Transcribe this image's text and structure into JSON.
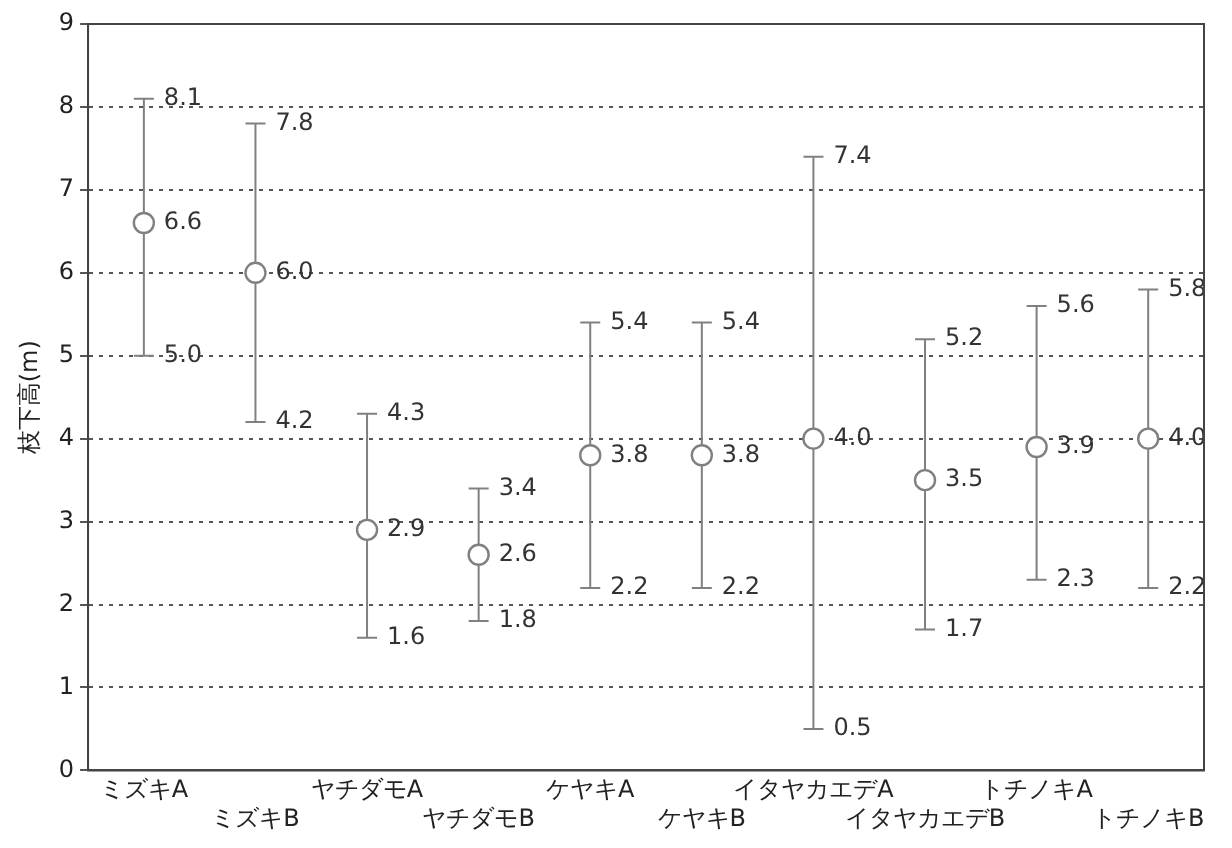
{
  "chart_data": {
    "type": "scatter",
    "ylabel": "枝下高(m)",
    "categories": [
      "ミズキA",
      "ミズキB",
      "ヤチダモA",
      "ヤチダモB",
      "ケヤキA",
      "ケヤキB",
      "イタヤカエデA",
      "イタヤカエデB",
      "トチノキA",
      "トチノキB"
    ],
    "series": [
      {
        "color": "#808080",
        "values": [
          6.6,
          6.0,
          2.9,
          2.6,
          3.8,
          3.8,
          4.0,
          3.5,
          3.9,
          4.0
        ],
        "value_labels": [
          "6.6",
          "6.0",
          "2.9",
          "2.6",
          "3.8",
          "3.8",
          "4.0",
          "3.5",
          "3.9",
          "4.0"
        ],
        "errors": [
          [
            5.0,
            8.1
          ],
          [
            4.2,
            7.8
          ],
          [
            1.6,
            4.3
          ],
          [
            1.8,
            3.4
          ],
          [
            2.2,
            5.4
          ],
          [
            2.2,
            5.4
          ],
          [
            0.5,
            7.4
          ],
          [
            1.7,
            5.2
          ],
          [
            2.3,
            5.6
          ],
          [
            2.2,
            5.8
          ]
        ]
      }
    ],
    "annotations": [
      {
        "text": "8.1",
        "x": "ミズキA",
        "y": 8.1
      },
      {
        "text": "5.0",
        "x": "ミズキA",
        "y": 5.0
      },
      {
        "text": "7.8",
        "x": "ミズキB",
        "y": 7.8
      },
      {
        "text": "4.2",
        "x": "ミズキB",
        "y": 4.2
      },
      {
        "text": "4.3",
        "x": "ヤチダモA",
        "y": 4.3
      },
      {
        "text": "1.6",
        "x": "ヤチダモA",
        "y": 1.6
      },
      {
        "text": "3.4",
        "x": "ヤチダモB",
        "y": 3.4
      },
      {
        "text": "1.8",
        "x": "ヤチダモB",
        "y": 1.8
      },
      {
        "text": "5.4",
        "x": "ケヤキA",
        "y": 5.4
      },
      {
        "text": "2.2",
        "x": "ケヤキA",
        "y": 2.2
      },
      {
        "text": "5.4",
        "x": "ケヤキB",
        "y": 5.4
      },
      {
        "text": "2.2",
        "x": "ケヤキB",
        "y": 2.2
      },
      {
        "text": "7.4",
        "x": "イタヤカエデA",
        "y": 7.4
      },
      {
        "text": "0.5",
        "x": "イタヤカエデA",
        "y": 0.5
      },
      {
        "text": "5.2",
        "x": "イタヤカエデB",
        "y": 5.2
      },
      {
        "text": "1.7",
        "x": "イタヤカエデB",
        "y": 1.7
      },
      {
        "text": "5.6",
        "x": "トチノキA",
        "y": 5.6
      },
      {
        "text": "2.3",
        "x": "トチノキA",
        "y": 2.3
      },
      {
        "text": "5.8",
        "x": "トチノキB",
        "y": 5.8
      },
      {
        "text": "2.2",
        "x": "トチノキB",
        "y": 2.2
      }
    ],
    "marker": "circle",
    "grid": "y",
    "legend": false,
    "ylim": [
      0,
      9
    ],
    "yticks": [
      0,
      1,
      2,
      3,
      4,
      5,
      6,
      7,
      8,
      9
    ]
  }
}
